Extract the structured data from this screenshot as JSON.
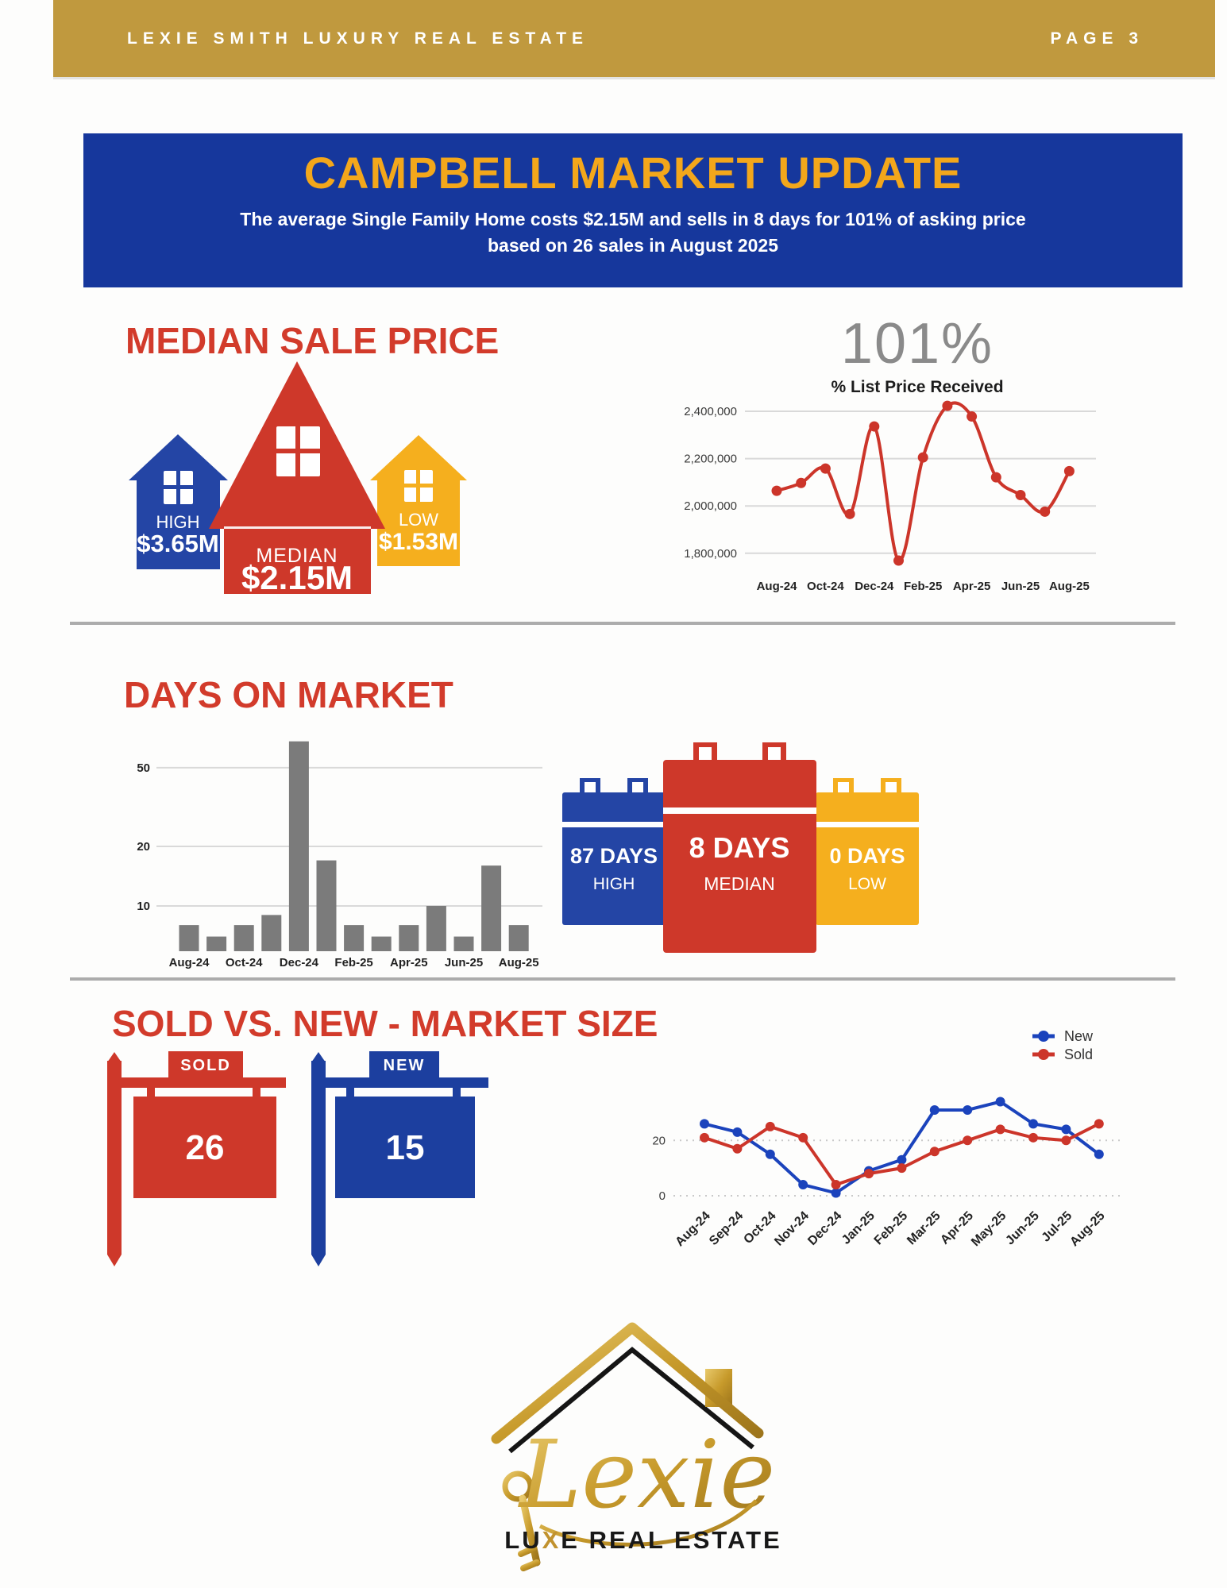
{
  "header": {
    "brand": "LEXIE SMITH LUXURY REAL ESTATE",
    "page": "PAGE 3"
  },
  "banner": {
    "title": "CAMPBELL MARKET UPDATE",
    "subtitle_line1": "The average Single Family Home costs $2.15M and sells in 8 days for 101% of asking price",
    "subtitle_line2": "based on 26 sales in August 2025"
  },
  "median_section": {
    "heading": "MEDIAN SALE PRICE",
    "houses": [
      {
        "label": "HIGH",
        "value": "$3.65M"
      },
      {
        "label": "MEDIAN",
        "value": "$2.15M"
      },
      {
        "label": "LOW",
        "value": "$1.53M"
      }
    ],
    "stat_value": "101%",
    "stat_label": "% List Price Received"
  },
  "days_section": {
    "heading": "DAYS ON MARKET",
    "calendars": [
      {
        "value": "87 DAYS",
        "label": "HIGH"
      },
      {
        "value": "8 DAYS",
        "label": "MEDIAN"
      },
      {
        "value": "0 DAYS",
        "label": "LOW"
      }
    ]
  },
  "sold_section": {
    "heading": "SOLD VS. NEW - MARKET SIZE",
    "signs": [
      {
        "label": "SOLD",
        "value": "26"
      },
      {
        "label": "NEW",
        "value": "15"
      }
    ]
  },
  "logo": {
    "script": "Lexie",
    "brand_prefix": "LU",
    "brand_x": "X",
    "brand_suffix": "E REAL ESTATE"
  },
  "colors": {
    "gold_band": "#c0993e",
    "banner_blue": "#16379c",
    "banner_yellow": "#f3a71b",
    "red": "#ce382a",
    "house_blue": "#2445a5",
    "house_yellow": "#f5af1e",
    "bar_gray": "#7b7b7b",
    "line_red": "#cc352a",
    "line_blue": "#1b43bc"
  },
  "chart_data": [
    {
      "id": "list_price",
      "type": "line",
      "title": "101%",
      "subtitle": "% List Price Received",
      "x": [
        "Aug-24",
        "Sep-24",
        "Oct-24",
        "Nov-24",
        "Dec-24",
        "Jan-25",
        "Feb-25",
        "Mar-25",
        "Apr-25",
        "May-25",
        "Jun-25",
        "Jul-25",
        "Aug-25"
      ],
      "series": [
        {
          "name": "Median Sale Price",
          "color": "#cc352a",
          "values": [
            2064000,
            2097000,
            2158000,
            1966000,
            2336000,
            1769000,
            2205000,
            2423000,
            2378000,
            2121000,
            2046000,
            1976000,
            2147000
          ]
        }
      ],
      "ylim": [
        1700000,
        2500000
      ],
      "yticks": [
        2400000,
        2200000,
        2000000,
        1800000
      ],
      "ytick_labels": [
        "2,400,000",
        "2,200,000",
        "2,000,000",
        "1,800,000"
      ],
      "xtick_labels": [
        "Aug-24",
        "Oct-24",
        "Dec-24",
        "Feb-25",
        "Apr-25",
        "Jun-25",
        "Aug-25"
      ],
      "grid": "horizontal-solid",
      "legend": "none",
      "smooth": true
    },
    {
      "id": "days_on_market",
      "type": "bar",
      "x": [
        "Aug-24",
        "Sep-24",
        "Oct-24",
        "Nov-24",
        "Dec-24",
        "Jan-25",
        "Feb-25",
        "Mar-25",
        "Apr-25",
        "May-25",
        "Jun-25",
        "Jul-25",
        "Aug-25"
      ],
      "values": [
        8,
        7,
        8,
        9,
        68,
        17,
        8,
        7,
        8,
        10,
        7,
        16,
        8
      ],
      "scale": "log",
      "yticks": [
        50,
        20,
        10
      ],
      "ylim": [
        6,
        80
      ],
      "xtick_labels": [
        "Aug-24",
        "Oct-24",
        "Dec-24",
        "Feb-25",
        "Apr-25",
        "Jun-25",
        "Aug-25"
      ],
      "bar_color": "#7b7b7b",
      "grid": "horizontal-solid"
    },
    {
      "id": "sold_vs_new",
      "type": "line",
      "x": [
        "Aug-24",
        "Sep-24",
        "Oct-24",
        "Nov-24",
        "Dec-24",
        "Jan-25",
        "Feb-25",
        "Mar-25",
        "Apr-25",
        "May-25",
        "Jun-25",
        "Jul-25",
        "Aug-25"
      ],
      "series": [
        {
          "name": "New",
          "color": "#1b43bc",
          "values": [
            26,
            23,
            15,
            4,
            1,
            9,
            13,
            31,
            31,
            34,
            26,
            24,
            15
          ]
        },
        {
          "name": "Sold",
          "color": "#cc352a",
          "values": [
            21,
            17,
            25,
            21,
            4,
            8,
            10,
            16,
            20,
            24,
            21,
            20,
            26
          ]
        }
      ],
      "yticks": [
        20,
        0
      ],
      "ylim": [
        0,
        38
      ],
      "grid": "horizontal-dotted",
      "legend_position": "top-right",
      "xtick_rotate": -45
    }
  ]
}
